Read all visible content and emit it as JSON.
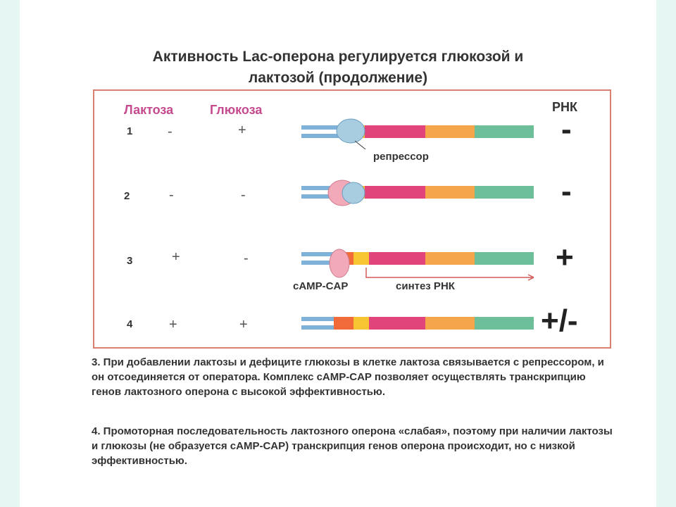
{
  "title_line1": "Активность Lac-оперона регулируется глюкозой и",
  "title_line2": "лактозой (продолжение)",
  "headers": {
    "lactose": "Лактоза",
    "glucose": "Глюкоза",
    "rna": "РНК"
  },
  "rows": [
    {
      "num": "1",
      "lactose": "-",
      "glucose": "+",
      "rna": "-"
    },
    {
      "num": "2",
      "lactose": "-",
      "glucose": "-",
      "rna": "-"
    },
    {
      "num": "3",
      "lactose": "+",
      "glucose": "-",
      "rna": "+"
    },
    {
      "num": "4",
      "lactose": "+",
      "glucose": "+",
      "rna": "+/-"
    }
  ],
  "labels": {
    "repressor": "репрессор",
    "camp_cap": "сAMP-CAP",
    "rna_synthesis": "синтез РНК"
  },
  "paragraph_3": "3. При добавлении лактозы и дефиците глюкозы в клетке лактоза связывается с репрессором, и он отсоединяется от оператора. Комплекс сAMP-CAP позволяет осуществлять транскрипцию генов лактозного оперона с высокой эффективностью.",
  "paragraph_4": "4. Промоторная последовательность лактозного оперона «слабая», поэтому при наличии лактозы и глюкозы (не образуется сAMP-CAP) транскрипция генов оперона происходит, но с низкой эффективностью.",
  "colors": {
    "frame": "#d98070",
    "header_pink": "#c54a8e",
    "dna_blue": "#7fb2d8",
    "promoter_red": "#f06a3a",
    "operator_yellow": "#f7c531",
    "gene_z": "#e0447a",
    "gene_y": "#f5a64a",
    "gene_a": "#6dbf9a",
    "repressor": "#a9cde0",
    "cap": "#f2aab8"
  }
}
